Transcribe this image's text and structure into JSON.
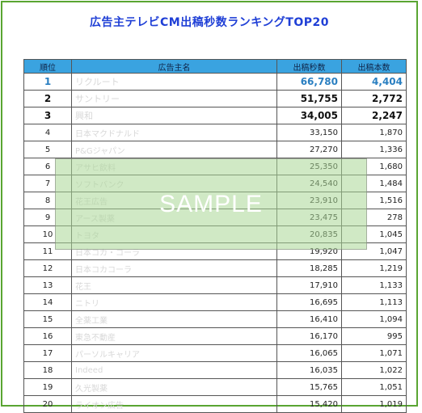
{
  "title": "広告主テレビCM出稿秒数ランキングTOP20",
  "headers": {
    "rank": "順位",
    "advertiser": "広告主名",
    "seconds": "出稿秒数",
    "count": "出稿本数"
  },
  "rows": [
    {
      "rank": "1",
      "name": "リクルート",
      "seconds": "66,780",
      "count": "4,404"
    },
    {
      "rank": "2",
      "name": "サントリー",
      "seconds": "51,755",
      "count": "2,772"
    },
    {
      "rank": "3",
      "name": "興和",
      "seconds": "34,005",
      "count": "2,247"
    },
    {
      "rank": "4",
      "name": "日本マクドナルド",
      "seconds": "33,150",
      "count": "1,870"
    },
    {
      "rank": "5",
      "name": "P&Gジャパン",
      "seconds": "27,270",
      "count": "1,336"
    },
    {
      "rank": "6",
      "name": "アサヒ飲料",
      "seconds": "25,350",
      "count": "1,680"
    },
    {
      "rank": "7",
      "name": "ソフトバンク",
      "seconds": "24,540",
      "count": "1,484"
    },
    {
      "rank": "8",
      "name": "花王広告",
      "seconds": "23,910",
      "count": "1,516"
    },
    {
      "rank": "9",
      "name": "アース製薬",
      "seconds": "23,475",
      "count": "278"
    },
    {
      "rank": "10",
      "name": "トヨタ",
      "seconds": "20,835",
      "count": "1,045"
    },
    {
      "rank": "11",
      "name": "日本コカ・コーラ",
      "seconds": "19,920",
      "count": "1,047"
    },
    {
      "rank": "12",
      "name": "日本コカコーラ",
      "seconds": "18,285",
      "count": "1,219"
    },
    {
      "rank": "13",
      "name": "花王",
      "seconds": "17,910",
      "count": "1,133"
    },
    {
      "rank": "14",
      "name": "ニトリ",
      "seconds": "16,695",
      "count": "1,113"
    },
    {
      "rank": "15",
      "name": "全薬工業",
      "seconds": "16,410",
      "count": "1,094"
    },
    {
      "rank": "16",
      "name": "東急不動産",
      "seconds": "16,170",
      "count": "995"
    },
    {
      "rank": "17",
      "name": "パーソルキャリア",
      "seconds": "16,065",
      "count": "1,071"
    },
    {
      "rank": "18",
      "name": "Indeed",
      "seconds": "16,035",
      "count": "1,022"
    },
    {
      "rank": "19",
      "name": "久光製薬",
      "seconds": "15,765",
      "count": "1,051"
    },
    {
      "rank": "20",
      "name": "ライオン広告",
      "seconds": "15,420",
      "count": "1,019"
    }
  ],
  "watermark": "SAMPLE",
  "colors": {
    "title": "#1f3fd6",
    "header_bg": "#3aa3e0",
    "frame": "#5aa532",
    "rank1": "#2a7fc1"
  }
}
